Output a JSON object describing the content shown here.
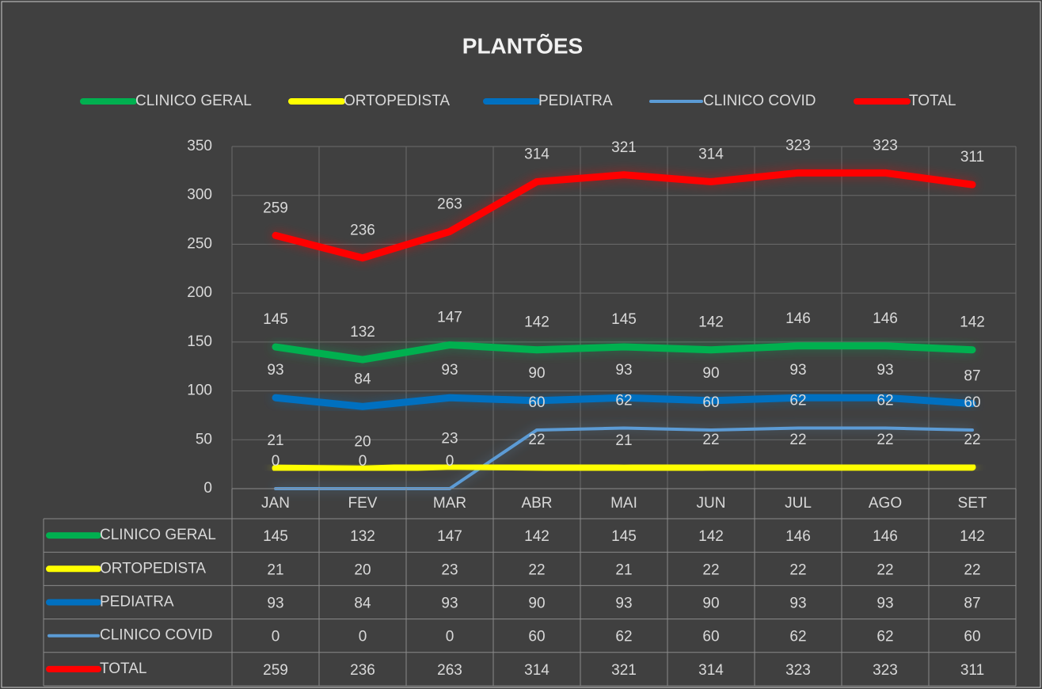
{
  "chart_data": {
    "type": "line",
    "title": "PLANTÕES",
    "categories": [
      "JAN",
      "FEV",
      "MAR",
      "ABR",
      "MAI",
      "JUN",
      "JUL",
      "AGO",
      "SET"
    ],
    "series": [
      {
        "name": "CLINICO GERAL",
        "color": "#00b050",
        "values": [
          145,
          132,
          147,
          142,
          145,
          142,
          146,
          146,
          142
        ]
      },
      {
        "name": "ORTOPEDISTA",
        "color": "#ffff00",
        "values": [
          21,
          20,
          23,
          22,
          21,
          22,
          22,
          22,
          22
        ]
      },
      {
        "name": "PEDIATRA",
        "color": "#0070c0",
        "values": [
          93,
          84,
          93,
          90,
          93,
          90,
          93,
          93,
          87
        ]
      },
      {
        "name": "CLINICO COVID",
        "color": "#5b9bd5",
        "values": [
          0,
          0,
          0,
          60,
          62,
          60,
          62,
          62,
          60
        ]
      },
      {
        "name": "TOTAL",
        "color": "#ff0000",
        "values": [
          259,
          236,
          263,
          314,
          321,
          314,
          323,
          323,
          311
        ]
      }
    ],
    "ylim": [
      0,
      350
    ],
    "yticks": [
      0,
      50,
      100,
      150,
      200,
      250,
      300,
      350
    ],
    "grid": true,
    "legend": "top",
    "data_table": true
  }
}
